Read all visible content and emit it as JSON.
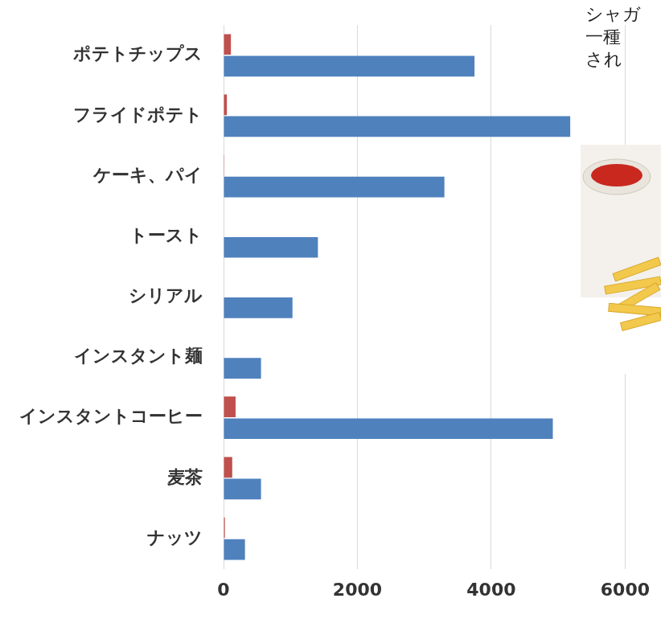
{
  "chart_data": {
    "type": "bar",
    "orientation": "horizontal",
    "categories": [
      "ポテトチップス",
      "フライドポテト",
      "ケーキ、パイ",
      "トースト",
      "シリアル",
      "インスタント麺",
      "インスタントコーヒー",
      "麦茶",
      "ナッツ"
    ],
    "series": [
      {
        "color": "#c0504d",
        "values": [
          110,
          50,
          10,
          0,
          0,
          0,
          180,
          130,
          20
        ]
      },
      {
        "color": "#4f81bd",
        "values": [
          3750,
          5180,
          3300,
          1410,
          1030,
          560,
          4920,
          560,
          320
        ]
      }
    ],
    "xlim": [
      0,
      6000
    ],
    "xticks": [
      0,
      2000,
      4000,
      6000
    ],
    "grid": true,
    "annotations": [
      "シャガ",
      "一種",
      "され"
    ]
  }
}
